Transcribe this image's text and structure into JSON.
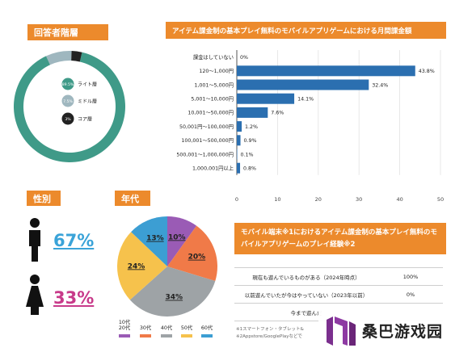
{
  "headers": {
    "respondent": "回答者階層",
    "spend": "アイテム課金制の基本プレイ無料のモバイルアプリゲームにおける月間課金額",
    "gender": "性別",
    "age": "年代",
    "mobile": "モバイル端末※1におけるアイテム課金制の基本プレイ無料のモバイルアプリゲームのプレイ経験※2"
  },
  "colors": {
    "accent": "#ec8a2c",
    "teal": "#3f9a88",
    "bar": "#2b6fb0",
    "male": "#3aa3d8",
    "female": "#c83a8a"
  },
  "chart_data": [
    {
      "type": "pie",
      "name": "respondent",
      "donut": true,
      "slices": [
        {
          "label": "ライト層",
          "value": 89.5,
          "display": "89.5%",
          "color": "#3f9a88"
        },
        {
          "label": "ミドル層",
          "value": 7.5,
          "display": "7.5%",
          "color": "#9fb7bf"
        },
        {
          "label": "コア層",
          "value": 3,
          "display": "3%",
          "color": "#222222"
        }
      ]
    },
    {
      "type": "bar",
      "name": "spend",
      "orientation": "horizontal",
      "categories": [
        "課金はしていない",
        "120～1,000円",
        "1,001～5,000円",
        "5,001～10,000円",
        "10,001～50,000円",
        "50,001円～100,000円",
        "100,001～500,000円",
        "500,001～1,000,000円",
        "1,000,001円以上"
      ],
      "values": [
        0,
        43.8,
        32.4,
        14.1,
        7.6,
        1.2,
        0.9,
        0.1,
        0.8
      ],
      "value_labels": [
        "0%",
        "43.8%",
        "32.4%",
        "14.1%",
        "7.6%",
        "1.2%",
        "0.9%",
        "0.1%",
        "0.8%"
      ],
      "xlim": [
        0,
        50
      ],
      "xticks": [
        "0",
        "10",
        "20",
        "30",
        "40",
        "50"
      ],
      "grid": true
    },
    {
      "type": "pie",
      "name": "age",
      "slices": [
        {
          "label": "10代\n20代",
          "value": 10,
          "display": "10%",
          "color": "#9a5bb5"
        },
        {
          "label": "30代",
          "value": 20,
          "display": "20%",
          "color": "#f07a48"
        },
        {
          "label": "40代",
          "value": 34,
          "display": "34%",
          "color": "#9ea3a6"
        },
        {
          "label": "50代",
          "value": 24,
          "display": "24%",
          "color": "#f6c24c"
        },
        {
          "label": "60代",
          "value": 13,
          "display": "13%",
          "color": "#3c9ed3"
        }
      ]
    }
  ],
  "gender": {
    "male": "67%",
    "female": "33%"
  },
  "mobile_table": [
    {
      "q": "現在も遊んでいるものがある（2024年時点）",
      "v": "100%"
    },
    {
      "q": "以前遊んでいたが今はやっていない（2023年以前）",
      "v": "0%"
    },
    {
      "q": "今まで遊んだ",
      "v": ""
    }
  ],
  "notes": [
    "※1スマートフォン・タブレット&",
    "※2Appstore/GooglePlayなどで"
  ],
  "watermark": "桑巴游戏园"
}
